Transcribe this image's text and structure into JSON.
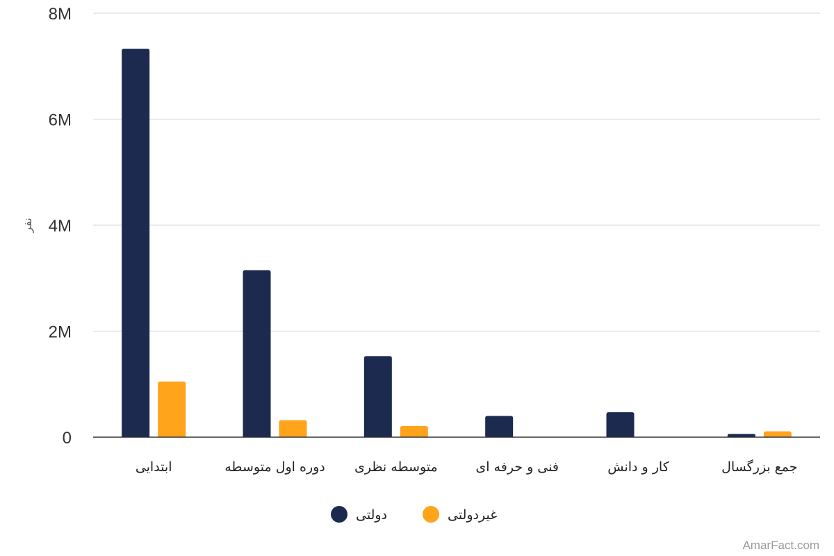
{
  "chart_data": {
    "type": "bar",
    "ylabel": "نفر",
    "ylim": [
      0,
      8000000
    ],
    "yticks": [
      {
        "value": 0,
        "label": "0"
      },
      {
        "value": 2000000,
        "label": "2M"
      },
      {
        "value": 4000000,
        "label": "4M"
      },
      {
        "value": 6000000,
        "label": "6M"
      },
      {
        "value": 8000000,
        "label": "8M"
      }
    ],
    "categories": [
      "ابتدایی",
      "دوره اول متوسطه",
      "متوسطه نظری",
      "فنی و حرفه ای",
      "کار و دانش",
      "جمع بزرگسال"
    ],
    "series": [
      {
        "name": "دولتی",
        "color": "#1b2a4e",
        "values": [
          7330000,
          3150000,
          1530000,
          400000,
          470000,
          60000
        ]
      },
      {
        "name": "غیردولتی",
        "color": "#ffa41b",
        "values": [
          1050000,
          320000,
          210000,
          0,
          0,
          110000
        ]
      }
    ],
    "grid": true,
    "legend_position": "bottom-center"
  },
  "watermark": "AmarFact.com"
}
